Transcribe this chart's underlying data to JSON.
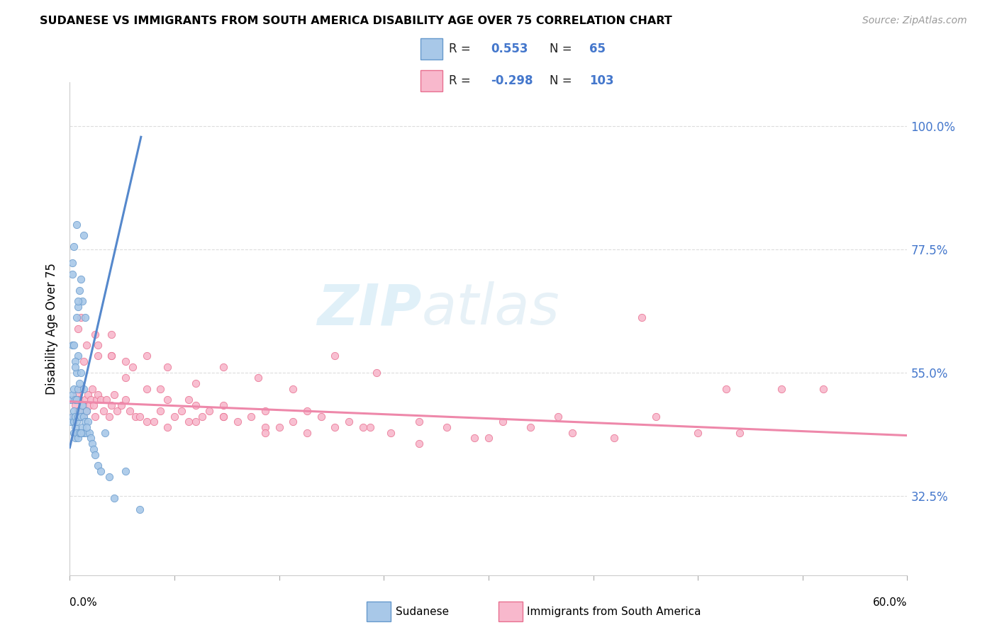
{
  "title": "SUDANESE VS IMMIGRANTS FROM SOUTH AMERICA DISABILITY AGE OVER 75 CORRELATION CHART",
  "source": "Source: ZipAtlas.com",
  "ylabel": "Disability Age Over 75",
  "xmin": 0.0,
  "xmax": 0.6,
  "ymin": 0.18,
  "ymax": 1.08,
  "yticks": [
    0.325,
    0.55,
    0.775,
    1.0
  ],
  "ytick_labels": [
    "32.5%",
    "55.0%",
    "77.5%",
    "100.0%"
  ],
  "color_sudanese": "#a8c8e8",
  "color_south_america": "#f8b8cc",
  "color_edge_sudanese": "#6699cc",
  "color_edge_sa": "#e87090",
  "color_line_sudanese": "#5588cc",
  "color_line_sa": "#ee88aa",
  "color_text_blue": "#4477cc",
  "color_grid": "#dddddd",
  "sudanese_x": [
    0.001,
    0.001,
    0.002,
    0.002,
    0.002,
    0.003,
    0.003,
    0.003,
    0.003,
    0.004,
    0.004,
    0.004,
    0.004,
    0.005,
    0.005,
    0.005,
    0.005,
    0.006,
    0.006,
    0.006,
    0.006,
    0.007,
    0.007,
    0.007,
    0.008,
    0.008,
    0.008,
    0.009,
    0.009,
    0.01,
    0.01,
    0.01,
    0.011,
    0.011,
    0.012,
    0.012,
    0.013,
    0.014,
    0.015,
    0.016,
    0.017,
    0.018,
    0.02,
    0.022,
    0.025,
    0.028,
    0.032,
    0.04,
    0.05,
    0.003,
    0.004,
    0.005,
    0.007,
    0.009,
    0.012,
    0.002,
    0.003,
    0.005,
    0.006,
    0.008,
    0.002,
    0.004,
    0.006,
    0.008,
    0.01
  ],
  "sudanese_y": [
    0.46,
    0.5,
    0.47,
    0.51,
    0.6,
    0.44,
    0.46,
    0.48,
    0.52,
    0.43,
    0.45,
    0.47,
    0.5,
    0.44,
    0.46,
    0.5,
    0.55,
    0.43,
    0.47,
    0.52,
    0.58,
    0.44,
    0.48,
    0.53,
    0.44,
    0.47,
    0.55,
    0.45,
    0.49,
    0.44,
    0.47,
    0.52,
    0.46,
    0.65,
    0.44,
    0.48,
    0.46,
    0.44,
    0.43,
    0.42,
    0.41,
    0.4,
    0.38,
    0.37,
    0.44,
    0.36,
    0.32,
    0.37,
    0.3,
    0.6,
    0.57,
    0.65,
    0.7,
    0.68,
    0.45,
    0.75,
    0.78,
    0.82,
    0.67,
    0.44,
    0.73,
    0.56,
    0.68,
    0.72,
    0.8
  ],
  "sa_x": [
    0.002,
    0.003,
    0.004,
    0.005,
    0.006,
    0.007,
    0.008,
    0.009,
    0.01,
    0.011,
    0.012,
    0.013,
    0.014,
    0.015,
    0.016,
    0.017,
    0.018,
    0.019,
    0.02,
    0.022,
    0.024,
    0.026,
    0.028,
    0.03,
    0.032,
    0.034,
    0.037,
    0.04,
    0.043,
    0.047,
    0.05,
    0.055,
    0.06,
    0.065,
    0.07,
    0.075,
    0.08,
    0.085,
    0.09,
    0.095,
    0.1,
    0.11,
    0.12,
    0.13,
    0.14,
    0.15,
    0.16,
    0.17,
    0.18,
    0.19,
    0.2,
    0.215,
    0.23,
    0.25,
    0.27,
    0.29,
    0.31,
    0.33,
    0.36,
    0.39,
    0.42,
    0.45,
    0.48,
    0.51,
    0.54,
    0.006,
    0.012,
    0.02,
    0.03,
    0.04,
    0.055,
    0.07,
    0.09,
    0.11,
    0.135,
    0.16,
    0.19,
    0.22,
    0.01,
    0.02,
    0.03,
    0.04,
    0.055,
    0.07,
    0.09,
    0.11,
    0.14,
    0.17,
    0.21,
    0.25,
    0.3,
    0.35,
    0.41,
    0.47,
    0.008,
    0.018,
    0.03,
    0.045,
    0.065,
    0.085,
    0.11,
    0.14
  ],
  "sa_y": [
    0.5,
    0.47,
    0.49,
    0.51,
    0.48,
    0.5,
    0.52,
    0.47,
    0.49,
    0.5,
    0.48,
    0.51,
    0.49,
    0.5,
    0.52,
    0.49,
    0.47,
    0.5,
    0.51,
    0.5,
    0.48,
    0.5,
    0.47,
    0.49,
    0.51,
    0.48,
    0.49,
    0.5,
    0.48,
    0.47,
    0.47,
    0.46,
    0.46,
    0.48,
    0.45,
    0.47,
    0.48,
    0.46,
    0.46,
    0.47,
    0.48,
    0.49,
    0.46,
    0.47,
    0.48,
    0.45,
    0.46,
    0.44,
    0.47,
    0.45,
    0.46,
    0.45,
    0.44,
    0.46,
    0.45,
    0.43,
    0.46,
    0.45,
    0.44,
    0.43,
    0.47,
    0.44,
    0.44,
    0.52,
    0.52,
    0.63,
    0.6,
    0.58,
    0.62,
    0.57,
    0.58,
    0.56,
    0.53,
    0.56,
    0.54,
    0.52,
    0.58,
    0.55,
    0.57,
    0.6,
    0.58,
    0.54,
    0.52,
    0.5,
    0.49,
    0.47,
    0.45,
    0.48,
    0.45,
    0.42,
    0.43,
    0.47,
    0.65,
    0.52,
    0.65,
    0.62,
    0.58,
    0.56,
    0.52,
    0.5,
    0.47,
    0.44
  ],
  "blue_line_x": [
    0.0,
    0.051
  ],
  "blue_line_y": [
    0.413,
    0.98
  ],
  "pink_line_x": [
    0.0,
    0.6
  ],
  "pink_line_y": [
    0.497,
    0.435
  ]
}
